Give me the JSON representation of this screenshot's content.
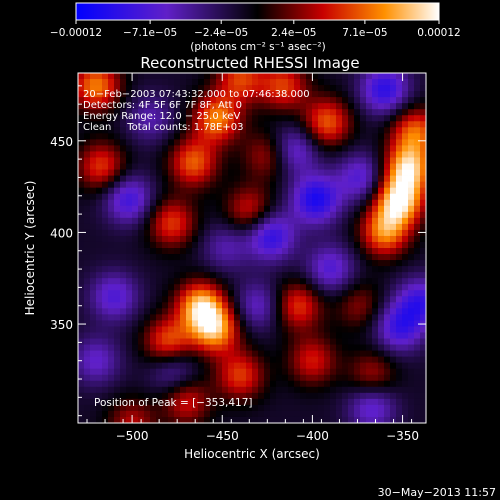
{
  "chart_data": {
    "type": "heatmap",
    "title": "Reconstructed RHESSI Image",
    "xlabel": "Heliocentric X (arcsec)",
    "ylabel": "Heliocentric Y (arcsec)",
    "xlim": [
      -530,
      -337
    ],
    "ylim": [
      296,
      487
    ],
    "x_ticks": [
      -500,
      -450,
      -400,
      -350
    ],
    "y_ticks": [
      350,
      400,
      450
    ],
    "x_tick_labels": [
      "−500",
      "−450",
      "−400",
      "−350"
    ],
    "y_tick_labels": [
      "350",
      "400",
      "450"
    ],
    "colorbar": {
      "range": [
        -0.00012,
        0.00012
      ],
      "tick_values": [
        -0.00012,
        -7.1e-05,
        -2.4e-05,
        2.4e-05,
        7.1e-05,
        0.00012
      ],
      "tick_labels": [
        "−0.00012",
        "−7.1e−05",
        "−2.4e−05",
        "2.4e−05",
        "7.1e−05",
        "0.00012"
      ],
      "units": "(photons cm⁻² s⁻¹ asec⁻²)"
    },
    "annotations": [
      "20−Feb−2003 07:43:32.000 to 07:46:38.000",
      "Detectors: 4F 5F 6F 7F 8F, Att 0",
      "Energy Range: 12.0 − 25.0 keV",
      "Clean     Total counts: 1.78E+03"
    ],
    "peak_label": "Position of Peak = [−353,417]",
    "peak": [
      -353,
      417
    ],
    "blobs": [
      {
        "x": -347,
        "y": 435,
        "v": 0.00011
      },
      {
        "x": -352,
        "y": 417,
        "v": 0.00012
      },
      {
        "x": -360,
        "y": 400,
        "v": 9e-05
      },
      {
        "x": -343,
        "y": 455,
        "v": 8e-05
      },
      {
        "x": -453,
        "y": 462,
        "v": 9e-05
      },
      {
        "x": -466,
        "y": 438,
        "v": 8e-05
      },
      {
        "x": -462,
        "y": 360,
        "v": 0.000105
      },
      {
        "x": -454,
        "y": 347,
        "v": 0.0001
      },
      {
        "x": -480,
        "y": 340,
        "v": 8e-05
      },
      {
        "x": -392,
        "y": 460,
        "v": 8e-05
      },
      {
        "x": -416,
        "y": 480,
        "v": 7e-05
      },
      {
        "x": -440,
        "y": 484,
        "v": 7e-05
      },
      {
        "x": -520,
        "y": 480,
        "v": 9e-05
      },
      {
        "x": -517,
        "y": 436,
        "v": 7e-05
      },
      {
        "x": -478,
        "y": 405,
        "v": 7e-05
      },
      {
        "x": -435,
        "y": 412,
        "v": 6e-05
      },
      {
        "x": -408,
        "y": 360,
        "v": 7e-05
      },
      {
        "x": -400,
        "y": 330,
        "v": 6e-05
      },
      {
        "x": -440,
        "y": 322,
        "v": 7e-05
      },
      {
        "x": -470,
        "y": 308,
        "v": 6e-05
      },
      {
        "x": -367,
        "y": 322,
        "v": 5e-05
      },
      {
        "x": -500,
        "y": 296,
        "v": 5e-05
      },
      {
        "x": -425,
        "y": 442,
        "v": 5e-05
      },
      {
        "x": -374,
        "y": 360,
        "v": 4e-05
      },
      {
        "x": -360,
        "y": 478,
        "v": -8e-05
      },
      {
        "x": -373,
        "y": 430,
        "v": -6e-05
      },
      {
        "x": -398,
        "y": 418,
        "v": -9e-05
      },
      {
        "x": -410,
        "y": 445,
        "v": -6e-05
      },
      {
        "x": -423,
        "y": 398,
        "v": -8e-05
      },
      {
        "x": -502,
        "y": 418,
        "v": -7e-05
      },
      {
        "x": -510,
        "y": 365,
        "v": -6e-05
      },
      {
        "x": -520,
        "y": 330,
        "v": -5e-05
      },
      {
        "x": -477,
        "y": 325,
        "v": -5e-05
      },
      {
        "x": -390,
        "y": 380,
        "v": -6e-05
      },
      {
        "x": -352,
        "y": 348,
        "v": -7e-05
      },
      {
        "x": -340,
        "y": 362,
        "v": -7e-05
      },
      {
        "x": -367,
        "y": 305,
        "v": -6e-05
      },
      {
        "x": -430,
        "y": 360,
        "v": -5e-05
      },
      {
        "x": -448,
        "y": 392,
        "v": -4e-05
      },
      {
        "x": -490,
        "y": 462,
        "v": -4e-05
      }
    ]
  },
  "footer_date": "30−May−2013 11:57"
}
